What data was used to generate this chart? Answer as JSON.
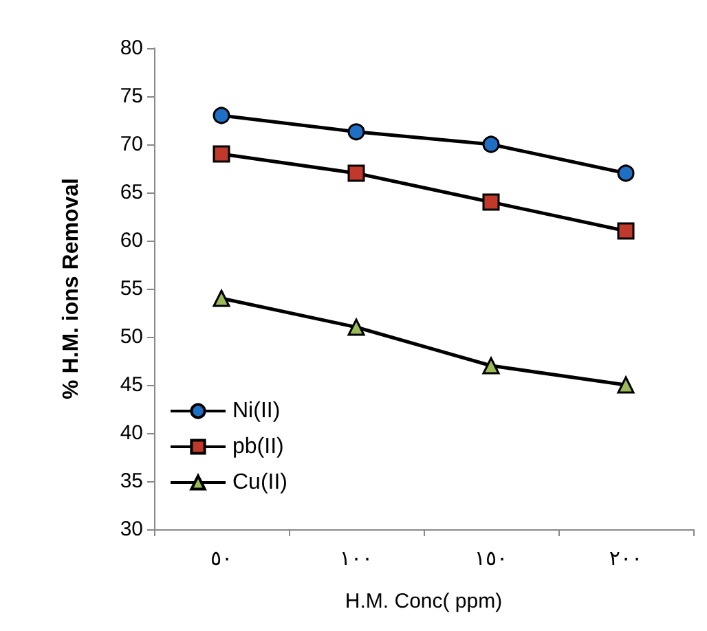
{
  "chart_data": {
    "type": "line",
    "xlabel": "H.M. Conc( ppm)",
    "ylabel": "% H.M. ions Removal",
    "categories": [
      "٥٠",
      "١٠٠",
      "١٥٠",
      "٢٠٠"
    ],
    "series": [
      {
        "name": "Ni(II)",
        "color": "#1f6fc5",
        "values": [
          73,
          71.3,
          70,
          67
        ],
        "marker": "circle"
      },
      {
        "name": "pb(II)",
        "color": "#c0392b",
        "values": [
          69,
          67,
          64,
          61
        ],
        "marker": "square"
      },
      {
        "name": "Cu(II)",
        "color": "#9bbb59",
        "values": [
          54,
          51,
          47,
          45
        ],
        "marker": "triangle"
      }
    ],
    "ylim": [
      30,
      80
    ],
    "yticks": [
      30,
      35,
      40,
      45,
      50,
      55,
      60,
      65,
      70,
      75,
      80
    ],
    "grid": false,
    "legend": "bottom left"
  }
}
